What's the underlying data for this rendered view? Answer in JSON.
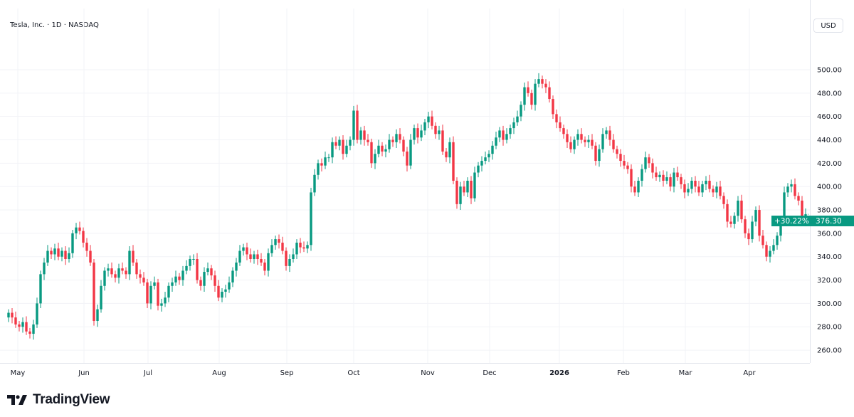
{
  "header": {
    "title": "Tesla, Inc. · 1D · NASDAQ",
    "currency_button": "USD"
  },
  "branding": {
    "logo_text": "TradingView"
  },
  "last_price": {
    "value": "376.30",
    "change": "+30.22%",
    "color": "#089981"
  },
  "colors": {
    "up": "#089981",
    "down": "#f23645",
    "grid": "#f2f3f7"
  },
  "chart_data": {
    "type": "candlestick",
    "title": "Tesla, Inc. · 1D · NASDAQ",
    "ylabel": "USD",
    "ylim": [
      250,
      505
    ],
    "y_ticks": [
      "260.00",
      "280.00",
      "300.00",
      "320.00",
      "340.00",
      "360.00",
      "380.00",
      "400.00",
      "420.00",
      "440.00",
      "460.00",
      "480.00",
      "500.00"
    ],
    "x_ticks": [
      {
        "label": "May",
        "index": 2.6
      },
      {
        "label": "Jun",
        "index": 21.2
      },
      {
        "label": "Jul",
        "index": 39.2
      },
      {
        "label": "Aug",
        "index": 59.2
      },
      {
        "label": "Sep",
        "index": 78.2
      },
      {
        "label": "Oct",
        "index": 97
      },
      {
        "label": "Nov",
        "index": 117.8
      },
      {
        "label": "Dec",
        "index": 135.2
      },
      {
        "label": "2026",
        "index": 154.8,
        "bold": true
      },
      {
        "label": "Feb",
        "index": 172.8
      },
      {
        "label": "Mar",
        "index": 190.2
      },
      {
        "label": "Apr",
        "index": 208.2
      }
    ],
    "first_open": 288,
    "close": [
      292,
      288,
      282,
      280,
      284,
      276,
      274,
      282,
      300,
      325,
      335,
      345,
      342,
      347,
      340,
      345,
      338,
      343,
      360,
      365,
      362,
      352,
      345,
      335,
      285,
      295,
      315,
      328,
      330,
      325,
      322,
      330,
      328,
      325,
      345,
      335,
      325,
      322,
      318,
      300,
      315,
      318,
      298,
      300,
      305,
      315,
      318,
      323,
      320,
      328,
      332,
      338,
      338,
      320,
      315,
      327,
      330,
      324,
      315,
      305,
      310,
      312,
      318,
      328,
      335,
      345,
      348,
      342,
      338,
      342,
      338,
      335,
      328,
      343,
      350,
      355,
      352,
      345,
      332,
      338,
      342,
      352,
      348,
      347,
      350,
      395,
      410,
      420,
      418,
      425,
      425,
      438,
      435,
      440,
      428,
      435,
      440,
      465,
      440,
      448,
      440,
      438,
      420,
      428,
      435,
      430,
      432,
      440,
      438,
      445,
      440,
      430,
      418,
      440,
      450,
      442,
      448,
      455,
      460,
      452,
      445,
      448,
      430,
      425,
      438,
      405,
      385,
      400,
      395,
      405,
      390,
      412,
      418,
      422,
      425,
      428,
      435,
      442,
      448,
      440,
      445,
      450,
      455,
      460,
      470,
      485,
      480,
      470,
      488,
      492,
      488,
      485,
      475,
      462,
      455,
      450,
      445,
      438,
      432,
      440,
      445,
      440,
      438,
      440,
      435,
      422,
      432,
      445,
      448,
      440,
      432,
      428,
      422,
      418,
      415,
      400,
      395,
      405,
      415,
      425,
      420,
      412,
      408,
      410,
      405,
      408,
      400,
      412,
      408,
      402,
      395,
      398,
      405,
      400,
      395,
      402,
      405,
      398,
      395,
      400,
      392,
      385,
      370,
      368,
      375,
      388,
      372,
      360,
      355,
      370,
      380,
      358,
      350,
      340,
      345,
      350,
      358,
      370,
      395,
      400,
      402,
      392,
      388,
      375,
      376.3
    ]
  }
}
